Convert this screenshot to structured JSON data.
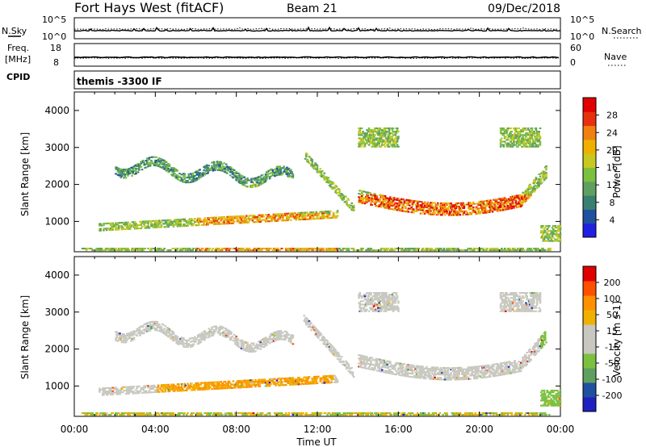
{
  "header": {
    "station": "Fort Hays West (fitACF)",
    "beam": "Beam 21",
    "date": "09/Dec/2018"
  },
  "noise_panel": {
    "left_label": "N.Sky",
    "left_ticks": [
      "10^5",
      "10^0"
    ],
    "right_ticks": [
      "10^5",
      "10^0"
    ],
    "right_label": "N.Search"
  },
  "freq_panel": {
    "left_label_1": "Freq.",
    "left_label_2": "[MHz]",
    "left_ticks": [
      "18",
      "8"
    ],
    "right_ticks": [
      "60",
      "0"
    ],
    "right_label": "Nave"
  },
  "cpid": {
    "label": "CPID",
    "value": "themis -3300 IF"
  },
  "colors": {
    "scale": [
      "#2020e0",
      "#2050a0",
      "#3a8070",
      "#5fa060",
      "#7cc040",
      "#c8c820",
      "#f0b000",
      "#f08010",
      "#e83010",
      "#e00000"
    ],
    "vel_scale": [
      "#e00000",
      "#ff5000",
      "#ff9000",
      "#f0b000",
      "#c8c8c0",
      "#c8c8c0",
      "#7cc040",
      "#5fa060",
      "#2050a0",
      "#2020c0"
    ]
  },
  "chart_data": [
    {
      "type": "heatmap",
      "name": "power",
      "ylabel": "Slant Range [km]",
      "ylim": [
        180,
        4500
      ],
      "yticks": [
        1000,
        2000,
        3000,
        4000
      ],
      "xlim": [
        0,
        24
      ],
      "xticks": [
        "00:00",
        "04:00",
        "08:00",
        "12:00",
        "16:00",
        "20:00",
        "00:00"
      ],
      "colorbar": {
        "label": "Power [dB]",
        "ticks": [
          "4",
          "8",
          "12",
          "16",
          "20",
          "24",
          "28"
        ],
        "range": [
          0,
          31
        ]
      }
    },
    {
      "type": "heatmap",
      "name": "velocity",
      "ylabel": "Slant Range [km]",
      "ylim": [
        180,
        4500
      ],
      "yticks": [
        1000,
        2000,
        3000,
        4000
      ],
      "xlim": [
        0,
        24
      ],
      "xticks": [
        "00:00",
        "04:00",
        "08:00",
        "12:00",
        "16:00",
        "20:00",
        "00:00"
      ],
      "xlabel": "Time UT",
      "colorbar": {
        "label": "Velocity [m s-1]",
        "ticks": [
          "200",
          "100",
          "50",
          "15",
          "-15",
          "-50",
          "-100",
          "-200"
        ],
        "range": [
          -250,
          250
        ]
      }
    }
  ]
}
